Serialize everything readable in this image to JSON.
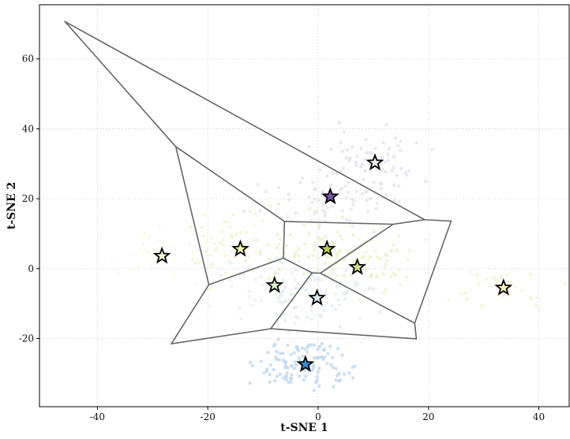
{
  "chart_data": {
    "type": "scatter",
    "title": "",
    "xlabel": "t-SNE 1",
    "ylabel": "t-SNE 2",
    "xlim": [
      -50.5,
      45.5
    ],
    "ylim": [
      -39.5,
      75.5
    ],
    "grid": true,
    "x_ticks": [
      -40,
      -20,
      0,
      20,
      40
    ],
    "y_ticks": [
      -20,
      0,
      20,
      40,
      60
    ],
    "x_tick_labels": [
      "-40",
      "-20",
      "0",
      "20",
      "40"
    ],
    "y_tick_labels": [
      "-20",
      "0",
      "20",
      "40",
      "60"
    ],
    "centroids": [
      {
        "x": 10.3,
        "y": 30.3,
        "color": "#f2f2f7"
      },
      {
        "x": 2.2,
        "y": 20.6,
        "color": "#7b55a8"
      },
      {
        "x": -14.1,
        "y": 5.6,
        "color": "#f7f3b2"
      },
      {
        "x": 1.6,
        "y": 5.6,
        "color": "#b7d04c"
      },
      {
        "x": -28.3,
        "y": 3.6,
        "color": "#f9f9d8"
      },
      {
        "x": 7.1,
        "y": 0.4,
        "color": "#cfe48e"
      },
      {
        "x": -7.9,
        "y": -4.8,
        "color": "#d9edc7"
      },
      {
        "x": -0.2,
        "y": -8.4,
        "color": "#e4eff9"
      },
      {
        "x": 33.6,
        "y": -5.5,
        "color": "#f6f5b0"
      },
      {
        "x": -2.3,
        "y": -27.4,
        "color": "#3d87c6"
      }
    ],
    "edges": [
      [
        [
          -45.9,
          70.7
        ],
        [
          -25.8,
          34.9
        ]
      ],
      [
        [
          -45.9,
          70.7
        ],
        [
          19.3,
          14.0
        ]
      ],
      [
        [
          -25.8,
          34.9
        ],
        [
          -6.1,
          13.5
        ]
      ],
      [
        [
          -25.8,
          34.9
        ],
        [
          -19.8,
          -4.6
        ]
      ],
      [
        [
          -6.1,
          13.5
        ],
        [
          13.6,
          12.7
        ]
      ],
      [
        [
          13.6,
          12.7
        ],
        [
          19.3,
          14.0
        ]
      ],
      [
        [
          19.3,
          14.0
        ],
        [
          24.1,
          13.6
        ]
      ],
      [
        [
          -6.1,
          13.5
        ],
        [
          -6.3,
          3.0
        ]
      ],
      [
        [
          -6.3,
          3.0
        ],
        [
          -1.1,
          -1.2
        ]
      ],
      [
        [
          -1.1,
          -1.2
        ],
        [
          0.4,
          -1.3
        ]
      ],
      [
        [
          -6.3,
          3.0
        ],
        [
          -19.8,
          -4.6
        ]
      ],
      [
        [
          -19.8,
          -4.6
        ],
        [
          -26.6,
          -21.5
        ]
      ],
      [
        [
          -1.1,
          -1.2
        ],
        [
          -8.6,
          -17.2
        ]
      ],
      [
        [
          -26.6,
          -21.5
        ],
        [
          -8.6,
          -17.2
        ]
      ],
      [
        [
          -8.6,
          -17.2
        ],
        [
          17.8,
          -20.1
        ]
      ],
      [
        [
          0.4,
          -1.3
        ],
        [
          13.6,
          12.7
        ]
      ],
      [
        [
          0.4,
          -1.3
        ],
        [
          17.5,
          -15.6
        ]
      ],
      [
        [
          17.5,
          -15.6
        ],
        [
          17.8,
          -20.1
        ]
      ],
      [
        [
          17.5,
          -15.6
        ],
        [
          24.1,
          13.6
        ]
      ]
    ],
    "clusters": [
      {
        "cx": 10.3,
        "cy": 30.3,
        "sx": 4.5,
        "sy": 5,
        "n": 60,
        "color": "#dfe2ee"
      },
      {
        "cx": 2.2,
        "cy": 20.6,
        "sx": 6,
        "sy": 4,
        "n": 60,
        "color": "#e3e1ef"
      },
      {
        "cx": -14.1,
        "cy": 5.6,
        "sx": 5,
        "sy": 5,
        "n": 55,
        "color": "#f4f2cf"
      },
      {
        "cx": 1.6,
        "cy": 5.6,
        "sx": 6,
        "sy": 5,
        "n": 70,
        "color": "#e8f0c4"
      },
      {
        "cx": -28.3,
        "cy": 3.6,
        "sx": 5,
        "sy": 4,
        "n": 30,
        "color": "#f8f8e2"
      },
      {
        "cx": 7.1,
        "cy": 0.4,
        "sx": 5,
        "sy": 5,
        "n": 60,
        "color": "#edf3cf"
      },
      {
        "cx": -7.9,
        "cy": -4.8,
        "sx": 5,
        "sy": 5,
        "n": 55,
        "color": "#e6f0ea"
      },
      {
        "cx": -0.2,
        "cy": -8.4,
        "sx": 5,
        "sy": 4,
        "n": 55,
        "color": "#dde9f5"
      },
      {
        "cx": 33.6,
        "cy": -5.5,
        "sx": 5,
        "sy": 3,
        "n": 35,
        "color": "#f3f3d8"
      },
      {
        "cx": -2.3,
        "cy": -27.4,
        "sx": 4,
        "sy": 4,
        "n": 110,
        "color": "#bcd5ec"
      }
    ]
  }
}
